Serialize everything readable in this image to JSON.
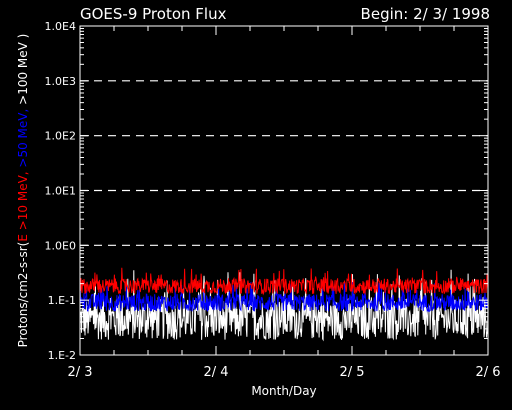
{
  "chart_data": {
    "type": "line",
    "title": "GOES-9 Proton Flux",
    "begin_label": "Begin: 2/ 3/ 1998",
    "xlabel": "Month/Day",
    "ylabel_parts": [
      {
        "text": "Protons/cm2-s-sr(",
        "color": "#ffffff"
      },
      {
        "text": "E >10 MeV, ",
        "color": "#ff0000"
      },
      {
        "text": ">50 MeV, ",
        "color": "#0000ff"
      },
      {
        "text": ">100 MeV )",
        "color": "#ffffff"
      }
    ],
    "y_scale": "log",
    "ylim": [
      0.01,
      10000
    ],
    "yticks": [
      {
        "value": 0.01,
        "label": "1.E-2"
      },
      {
        "value": 0.1,
        "label": "1.E-1"
      },
      {
        "value": 1,
        "label": "1.0E0"
      },
      {
        "value": 10,
        "label": "1.0E1"
      },
      {
        "value": 100,
        "label": "1.0E2"
      },
      {
        "value": 1000,
        "label": "1.0E3"
      },
      {
        "value": 10000,
        "label": "1.0E4"
      }
    ],
    "dashed_grid_at": [
      1,
      10,
      100,
      1000
    ],
    "xlim": [
      0,
      3
    ],
    "xticks": [
      {
        "value": 0,
        "label": "2/ 3"
      },
      {
        "value": 1,
        "label": "2/ 4"
      },
      {
        "value": 2,
        "label": "2/ 5"
      },
      {
        "value": 3,
        "label": "2/ 6"
      }
    ],
    "series": [
      {
        "name": ">100 MeV",
        "color": "#ffffff",
        "level": 0.045,
        "spread_dex": 0.38
      },
      {
        "name": ">50 MeV",
        "color": "#0000ff",
        "level": 0.09,
        "spread_dex": 0.16
      },
      {
        "name": ">10 MeV",
        "color": "#ff0000",
        "level": 0.18,
        "spread_dex": 0.14
      }
    ]
  }
}
